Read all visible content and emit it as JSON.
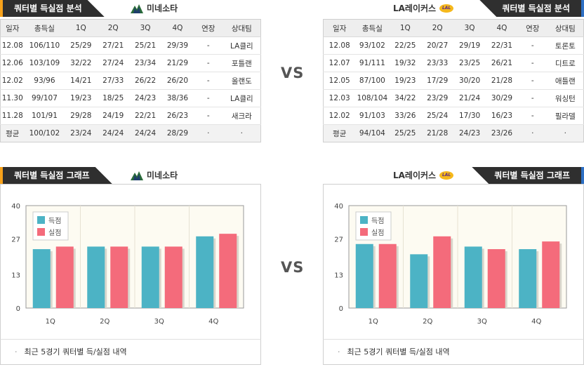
{
  "colors": {
    "scored": "#4cb3c5",
    "allowed": "#f46b7b",
    "tab_bg": "#2f2f2f",
    "accent_left": "#f7a21b",
    "accent_right": "#2d6fc4"
  },
  "vs_label": "VS",
  "left": {
    "header": {
      "title": "쿼터별 득실점 분석",
      "team": "미네소타",
      "team_icon": "timberwolves-logo-icon"
    },
    "table": {
      "columns": [
        "일자",
        "총득실",
        "1Q",
        "2Q",
        "3Q",
        "4Q",
        "연장",
        "상대팀"
      ],
      "rows": [
        [
          "12.08",
          "106/110",
          "25/29",
          "27/21",
          "25/21",
          "29/39",
          "-",
          "LA클리"
        ],
        [
          "12.06",
          "103/109",
          "32/22",
          "27/24",
          "23/34",
          "21/29",
          "-",
          "포틀랜"
        ],
        [
          "12.02",
          "93/96",
          "14/21",
          "27/33",
          "26/22",
          "26/20",
          "-",
          "올랜도"
        ],
        [
          "11.30",
          "99/107",
          "19/23",
          "18/25",
          "24/23",
          "38/36",
          "-",
          "LA클리"
        ],
        [
          "11.28",
          "101/91",
          "29/28",
          "24/19",
          "22/21",
          "26/23",
          "-",
          "새크라"
        ]
      ],
      "avg": [
        "평균",
        "100/102",
        "23/24",
        "24/24",
        "24/24",
        "28/29",
        "·",
        "·"
      ]
    },
    "chart_header": {
      "title": "쿼터별 득실점 그래프",
      "team": "미네소타"
    },
    "note": "최근 5경기 쿼터별 득/실점 내역"
  },
  "right": {
    "header": {
      "title": "쿼터별 득실점 분석",
      "team": "LA레이커스",
      "team_icon": "lakers-logo-icon"
    },
    "table": {
      "columns": [
        "일자",
        "총득실",
        "1Q",
        "2Q",
        "3Q",
        "4Q",
        "연장",
        "상대팀"
      ],
      "rows": [
        [
          "12.08",
          "93/102",
          "22/25",
          "20/27",
          "29/19",
          "22/31",
          "-",
          "토론토"
        ],
        [
          "12.07",
          "91/111",
          "19/32",
          "23/33",
          "23/25",
          "26/21",
          "-",
          "디트로"
        ],
        [
          "12.05",
          "87/100",
          "19/23",
          "17/29",
          "30/20",
          "21/28",
          "-",
          "애틀랜"
        ],
        [
          "12.03",
          "108/104",
          "34/22",
          "23/29",
          "21/24",
          "30/29",
          "-",
          "워싱턴"
        ],
        [
          "12.02",
          "91/103",
          "33/26",
          "25/24",
          "17/30",
          "16/23",
          "-",
          "필라델"
        ]
      ],
      "avg": [
        "평균",
        "94/104",
        "25/25",
        "21/28",
        "24/23",
        "23/26",
        "·",
        "·"
      ]
    },
    "chart_header": {
      "title": "쿼터별 득실점 그래프",
      "team": "LA레이커스"
    },
    "note": "최근 5경기 쿼터별 득/실점 내역"
  },
  "chart_data": [
    {
      "type": "bar",
      "title": "",
      "categories": [
        "1Q",
        "2Q",
        "3Q",
        "4Q"
      ],
      "series": [
        {
          "name": "득점",
          "values": [
            23,
            24,
            24,
            28
          ]
        },
        {
          "name": "실점",
          "values": [
            24,
            24,
            24,
            29
          ]
        }
      ],
      "yticks": [
        0,
        13,
        27,
        40
      ],
      "ylim": [
        0,
        40
      ],
      "legend": "top-left",
      "grid": false
    },
    {
      "type": "bar",
      "title": "",
      "categories": [
        "1Q",
        "2Q",
        "3Q",
        "4Q"
      ],
      "series": [
        {
          "name": "득점",
          "values": [
            25,
            21,
            24,
            23
          ]
        },
        {
          "name": "실점",
          "values": [
            25,
            28,
            23,
            26
          ]
        }
      ],
      "yticks": [
        0,
        13,
        27,
        40
      ],
      "ylim": [
        0,
        40
      ],
      "legend": "top-left",
      "grid": false
    }
  ]
}
